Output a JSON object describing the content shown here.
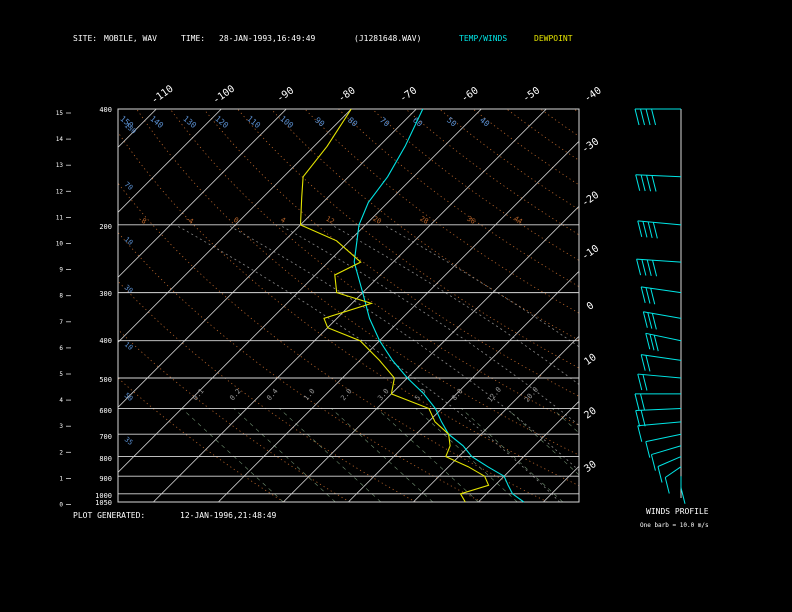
{
  "header": {
    "site_label": "SITE:",
    "site_value": "MOBILE, WAV",
    "time_label": "TIME:",
    "time_value": "28-JAN-1993,16:49:49",
    "file_value": "(J1281648.WAV)",
    "legend_temp": "TEMP/WINDS",
    "legend_dew": "DEWPOINT",
    "temp_color": "#00e5e5",
    "dew_color": "#e5e500"
  },
  "footer": {
    "generated_label": "PLOT GENERATED:",
    "generated_value": "12-JAN-1996,21:48:49",
    "winds_title": "WINDS PROFILE",
    "winds_note": "One barb = 10.0 m/s"
  },
  "chart_data": {
    "type": "line",
    "pressure_labels": [
      "400",
      "200",
      "300",
      "400",
      "500",
      "600",
      "700",
      "800",
      "900",
      "1000",
      "1050"
    ],
    "height_ticks": [
      "15",
      "14",
      "13",
      "12",
      "11",
      "10",
      "9",
      "8",
      "7",
      "6",
      "5",
      "4",
      "3",
      "2",
      "1",
      "0"
    ],
    "isotherm_labels": [
      "-110",
      "-100",
      "-90",
      "-80",
      "-70",
      "-60",
      "-50",
      "-40",
      "-30",
      "-20",
      "-10",
      "0",
      "10",
      "20",
      "30"
    ],
    "mixing_labels": [
      "0.1",
      "0.2",
      "0.4",
      "1.0",
      "2.0",
      "3.0",
      "5.0",
      "8.0",
      "12.0",
      "20.0"
    ],
    "dry_adiabat_labels": [
      "40",
      "50",
      "60",
      "70",
      "80",
      "90",
      "100",
      "110",
      "120",
      "130",
      "140",
      "150"
    ],
    "moist_labels": [
      "-20",
      "0",
      "10",
      "20",
      "30"
    ],
    "theta_left_labels": [
      "130",
      "70",
      "10",
      "30",
      "10",
      "50",
      "35"
    ],
    "temperature": [
      [
        1050,
        -3
      ],
      [
        1000,
        -6
      ],
      [
        950,
        -8
      ],
      [
        900,
        -10
      ],
      [
        850,
        -14
      ],
      [
        800,
        -18
      ],
      [
        750,
        -21
      ],
      [
        700,
        -25
      ],
      [
        650,
        -28
      ],
      [
        600,
        -31
      ],
      [
        550,
        -35
      ],
      [
        500,
        -40
      ],
      [
        450,
        -45
      ],
      [
        400,
        -50
      ],
      [
        350,
        -55
      ],
      [
        300,
        -60
      ],
      [
        250,
        -66
      ],
      [
        200,
        -71
      ],
      [
        175,
        -73
      ],
      [
        150,
        -74
      ],
      [
        125,
        -76
      ],
      [
        100,
        -79
      ]
    ],
    "dewpoint": [
      [
        1050,
        -12
      ],
      [
        1000,
        -14
      ],
      [
        950,
        -11
      ],
      [
        900,
        -13
      ],
      [
        850,
        -17
      ],
      [
        800,
        -22
      ],
      [
        750,
        -23
      ],
      [
        700,
        -25
      ],
      [
        650,
        -29
      ],
      [
        600,
        -32
      ],
      [
        550,
        -40
      ],
      [
        500,
        -42
      ],
      [
        450,
        -47
      ],
      [
        400,
        -53
      ],
      [
        370,
        -60
      ],
      [
        350,
        -62
      ],
      [
        320,
        -57
      ],
      [
        300,
        -64
      ],
      [
        270,
        -67
      ],
      [
        250,
        -65
      ],
      [
        220,
        -72
      ],
      [
        200,
        -80
      ],
      [
        170,
        -84
      ],
      [
        150,
        -87
      ],
      [
        125,
        -88
      ],
      [
        100,
        -90
      ]
    ],
    "winds": [
      [
        100,
        270,
        40
      ],
      [
        150,
        280,
        40
      ],
      [
        200,
        290,
        40
      ],
      [
        250,
        285,
        40
      ],
      [
        300,
        300,
        30
      ],
      [
        350,
        305,
        30
      ],
      [
        400,
        310,
        30
      ],
      [
        450,
        300,
        20
      ],
      [
        500,
        290,
        20
      ],
      [
        550,
        270,
        20
      ],
      [
        600,
        260,
        20
      ],
      [
        650,
        250,
        10
      ],
      [
        700,
        230,
        10
      ],
      [
        750,
        220,
        10
      ],
      [
        800,
        210,
        10
      ],
      [
        850,
        200,
        10
      ],
      [
        900,
        180,
        10
      ]
    ]
  }
}
